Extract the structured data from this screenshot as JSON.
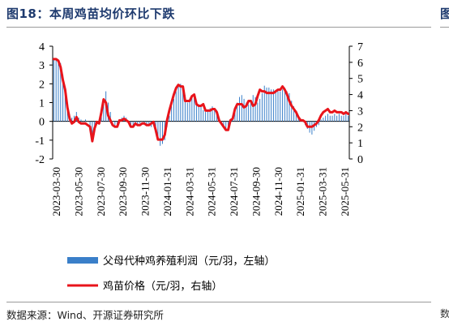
{
  "header": {
    "title": "图18：本周鸡苗均价环比下跌",
    "edge_glyph": "图",
    "edge_bottom": "数"
  },
  "footer": {
    "source": "数据来源：Wind、开源证券研究所"
  },
  "colors": {
    "title": "#1f3b6f",
    "bars": "#3a7fc9",
    "line": "#e8141b"
  },
  "chart_data": {
    "type": "bar+line",
    "left_axis": {
      "ylim": [
        -2,
        4
      ],
      "ticks": [
        "-2",
        "-1",
        "0",
        "1",
        "2",
        "3",
        "4"
      ]
    },
    "right_axis": {
      "ylim": [
        0,
        7
      ],
      "ticks": [
        "0",
        "1",
        "2",
        "3",
        "4",
        "5",
        "6",
        "7"
      ]
    },
    "x_tick_labels": [
      "2023-03-30",
      "2023-05-30",
      "2023-07-30",
      "2023-09-30",
      "2023-11-30",
      "2024-01-31",
      "2024-03-31",
      "2024-05-31",
      "2024-07-31",
      "2024-09-30",
      "2024-11-30",
      "2025-01-31",
      "2025-03-31",
      "2025-05-31"
    ],
    "legend": [
      {
        "label": "父母代种鸡养殖利润（元/羽，左轴）",
        "kind": "bar"
      },
      {
        "label": "鸡苗价格（元/羽，右轴）",
        "kind": "line"
      }
    ],
    "series": [
      {
        "name": "父母代种鸡养殖利润（元/羽，左轴）",
        "axis": "left",
        "kind": "bar",
        "values": [
          3.3,
          3.3,
          3.2,
          3.1,
          2.5,
          1.8,
          1.0,
          0.4,
          0.2,
          0.3,
          0.5,
          0.2,
          0.1,
          0.0,
          0.1,
          0.0,
          -0.3,
          -0.8,
          -0.3,
          0.0,
          0.1,
          0.6,
          1.2,
          1.6,
          1.0,
          0.5,
          0.0,
          -0.2,
          -0.2,
          0.1,
          0.2,
          0.3,
          0.2,
          0.0,
          -0.2,
          -0.3,
          -0.1,
          -0.2,
          -0.1,
          0.0,
          -0.1,
          -0.2,
          -0.2,
          -0.3,
          -0.2,
          -0.4,
          -1.0,
          -1.3,
          -1.2,
          -1.0,
          -0.3,
          0.3,
          0.8,
          1.2,
          1.6,
          1.9,
          2.0,
          1.9,
          1.4,
          1.0,
          1.1,
          1.3,
          1.3,
          0.9,
          0.8,
          0.9,
          0.6,
          0.5,
          0.6,
          0.7,
          0.8,
          0.7,
          0.6,
          0.2,
          -0.2,
          -0.3,
          -0.4,
          -0.5,
          -0.1,
          0.2,
          0.7,
          1.0,
          1.3,
          1.4,
          1.2,
          1.0,
          0.9,
          1.1,
          1.4,
          1.3,
          1.0,
          1.2,
          1.5,
          1.9,
          1.8,
          1.8,
          1.7,
          1.7,
          1.6,
          1.6,
          1.6,
          1.7,
          1.8,
          1.6,
          1.5,
          1.1,
          0.8,
          0.5,
          0.2,
          0.1,
          0.0,
          -0.2,
          -0.4,
          -0.6,
          -0.7,
          -0.5,
          -0.3,
          -0.2,
          0.1,
          0.2,
          0.3,
          0.4,
          0.3,
          0.3,
          0.4,
          0.3,
          0.4,
          0.3,
          0.3,
          0.4,
          0.3
        ]
      },
      {
        "name": "鸡苗价格（元/羽，右轴）",
        "axis": "right",
        "kind": "line",
        "values": [
          6.2,
          6.2,
          6.1,
          5.7,
          4.9,
          4.3,
          3.2,
          2.5,
          2.2,
          2.3,
          2.6,
          2.3,
          2.2,
          2.2,
          2.2,
          2.1,
          2.0,
          1.1,
          1.9,
          2.3,
          2.2,
          2.9,
          3.7,
          3.5,
          2.7,
          2.4,
          2.1,
          2.0,
          2.0,
          2.4,
          2.4,
          2.5,
          2.4,
          2.3,
          2.0,
          2.0,
          2.2,
          2.1,
          2.1,
          2.2,
          2.2,
          2.1,
          2.1,
          2.2,
          2.3,
          1.8,
          1.2,
          1.2,
          1.2,
          1.5,
          2.4,
          3.0,
          3.5,
          4.0,
          4.4,
          4.6,
          4.5,
          4.5,
          3.6,
          3.6,
          3.6,
          3.9,
          4.0,
          3.4,
          3.3,
          3.3,
          3.4,
          3.0,
          3.0,
          3.0,
          3.1,
          3.1,
          2.9,
          2.4,
          2.2,
          2.0,
          1.8,
          1.8,
          2.4,
          2.5,
          3.1,
          3.4,
          3.4,
          3.4,
          3.2,
          3.3,
          3.6,
          3.6,
          3.3,
          3.4,
          3.9,
          4.3,
          4.2,
          4.2,
          4.1,
          4.1,
          4.1,
          4.1,
          4.2,
          4.3,
          4.3,
          4.5,
          4.3,
          4.0,
          3.6,
          3.3,
          3.1,
          2.9,
          2.6,
          2.4,
          2.4,
          2.3,
          2.0,
          2.0,
          2.0,
          2.1,
          2.2,
          2.4,
          2.7,
          2.9,
          3.0,
          3.1,
          2.9,
          2.9,
          3.0,
          2.9,
          2.9,
          2.9,
          2.8,
          2.9,
          2.8
        ]
      }
    ]
  }
}
